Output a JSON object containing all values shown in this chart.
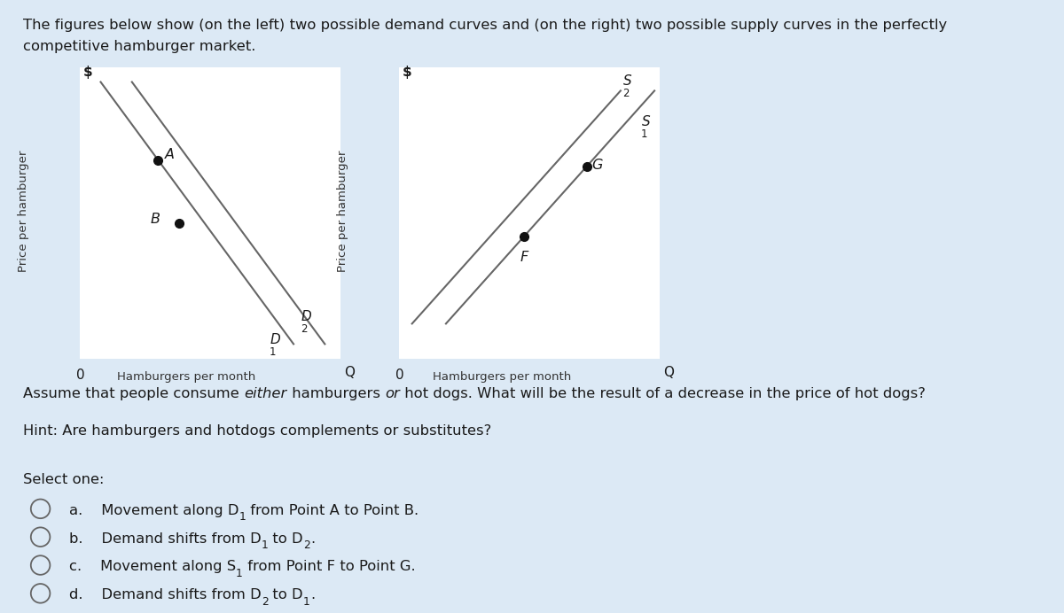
{
  "bg_color": "#dce9f5",
  "panel_bg": "#ffffff",
  "line_color": "#666666",
  "point_color": "#111111",
  "title_line1": "The figures below show (on the left) two possible demand curves and (on the right) two possible supply curves in the perfectly",
  "title_line2": "competitive hamburger market.",
  "question_plain1": "Assume that people consume ",
  "question_italic1": "either",
  "question_plain2": " hamburgers ",
  "question_italic2": "or",
  "question_plain3": " hot dogs. What will be the result of a decrease in the price of hot dogs?",
  "hint_text": "Hint: Are hamburgers and hotdogs complements or substitutes?",
  "select_text": "Select one:",
  "left_ylabel": "Price per hamburger",
  "left_dollar": "$",
  "left_xlabel": "Hamburgers per month",
  "left_origin": "0",
  "left_Q": "Q",
  "right_ylabel": "Price per hamburger",
  "right_dollar": "$",
  "right_xlabel": "Hamburgers per month",
  "right_origin": "0",
  "right_Q": "Q",
  "d1_label": "D",
  "d1_sub": "1",
  "d2_label": "D",
  "d2_sub": "2",
  "s1_label": "S",
  "s1_sub": "1",
  "s2_label": "S",
  "s2_sub": "2",
  "point_A_label": "A",
  "point_B_label": "B",
  "point_F_label": "F",
  "point_G_label": "G",
  "opt_a_pre": "a.    Movement along D",
  "opt_a_sub": "1",
  "opt_a_post": " from Point A to Point B.",
  "opt_b_pre": "b.    Demand shifts from D",
  "opt_b_sub1": "1",
  "opt_b_mid": " to D",
  "opt_b_sub2": "2",
  "opt_b_post": ".",
  "opt_c_pre": "c.    Movement along S",
  "opt_c_sub": "1",
  "opt_c_post": " from Point F to Point G.",
  "opt_d_pre": "d.    Demand shifts from D",
  "opt_d_sub1": "2",
  "opt_d_mid": " to D",
  "opt_d_sub2": "1",
  "opt_d_post": "."
}
